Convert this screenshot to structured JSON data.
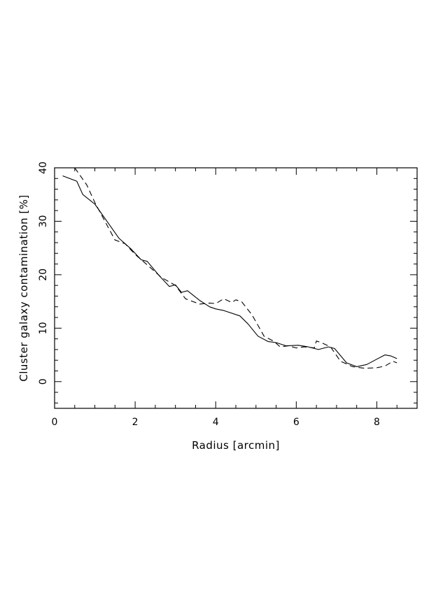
{
  "chart_data": {
    "type": "line",
    "title": "",
    "xlabel": "Radius [arcmin]",
    "ylabel": "Cluster galaxy contamination [%]",
    "xlim": [
      0,
      9
    ],
    "ylim": [
      -5,
      40
    ],
    "x_ticks": [
      0,
      2,
      4,
      6,
      8
    ],
    "y_ticks": [
      0,
      10,
      20,
      30,
      40
    ],
    "grid": false,
    "legend": "none",
    "series": [
      {
        "style": "solid",
        "color": "#000000",
        "points": [
          [
            0.2,
            38.5
          ],
          [
            0.55,
            37.5
          ],
          [
            0.7,
            35.0
          ],
          [
            1.0,
            33.2
          ],
          [
            1.3,
            30.0
          ],
          [
            1.6,
            26.8
          ],
          [
            1.9,
            24.8
          ],
          [
            2.15,
            22.8
          ],
          [
            2.3,
            22.5
          ],
          [
            2.6,
            19.8
          ],
          [
            2.85,
            17.8
          ],
          [
            3.0,
            18.1
          ],
          [
            3.15,
            16.7
          ],
          [
            3.3,
            17.0
          ],
          [
            3.6,
            15.2
          ],
          [
            3.85,
            14.0
          ],
          [
            4.0,
            13.6
          ],
          [
            4.2,
            13.3
          ],
          [
            4.6,
            12.3
          ],
          [
            4.8,
            10.8
          ],
          [
            5.05,
            8.5
          ],
          [
            5.3,
            7.5
          ],
          [
            5.5,
            7.3
          ],
          [
            5.75,
            6.7
          ],
          [
            6.05,
            6.8
          ],
          [
            6.3,
            6.5
          ],
          [
            6.55,
            6.0
          ],
          [
            6.8,
            6.5
          ],
          [
            6.95,
            6.2
          ],
          [
            7.25,
            3.5
          ],
          [
            7.5,
            2.8
          ],
          [
            7.75,
            3.2
          ],
          [
            8.0,
            4.2
          ],
          [
            8.2,
            5.0
          ],
          [
            8.35,
            4.8
          ],
          [
            8.5,
            4.3
          ]
        ]
      },
      {
        "style": "dashed",
        "color": "#000000",
        "points": [
          [
            0.5,
            40.0
          ],
          [
            0.8,
            36.8
          ],
          [
            1.0,
            33.5
          ],
          [
            1.25,
            30.0
          ],
          [
            1.5,
            26.5
          ],
          [
            1.75,
            25.8
          ],
          [
            2.0,
            23.8
          ],
          [
            2.35,
            21.5
          ],
          [
            2.65,
            19.5
          ],
          [
            3.0,
            18.0
          ],
          [
            3.25,
            15.5
          ],
          [
            3.6,
            14.5
          ],
          [
            3.85,
            14.7
          ],
          [
            4.0,
            14.6
          ],
          [
            4.2,
            15.5
          ],
          [
            4.4,
            14.8
          ],
          [
            4.5,
            15.3
          ],
          [
            4.65,
            14.9
          ],
          [
            4.9,
            12.5
          ],
          [
            5.05,
            10.5
          ],
          [
            5.2,
            8.5
          ],
          [
            5.45,
            7.5
          ],
          [
            5.6,
            6.5
          ],
          [
            5.8,
            6.7
          ],
          [
            6.0,
            6.3
          ],
          [
            6.2,
            6.5
          ],
          [
            6.45,
            6.3
          ],
          [
            6.5,
            7.6
          ],
          [
            6.65,
            7.2
          ],
          [
            6.85,
            6.5
          ],
          [
            7.1,
            3.8
          ],
          [
            7.4,
            2.8
          ],
          [
            7.7,
            2.5
          ],
          [
            8.0,
            2.6
          ],
          [
            8.2,
            2.9
          ],
          [
            8.4,
            3.8
          ],
          [
            8.5,
            3.5
          ]
        ]
      }
    ]
  }
}
